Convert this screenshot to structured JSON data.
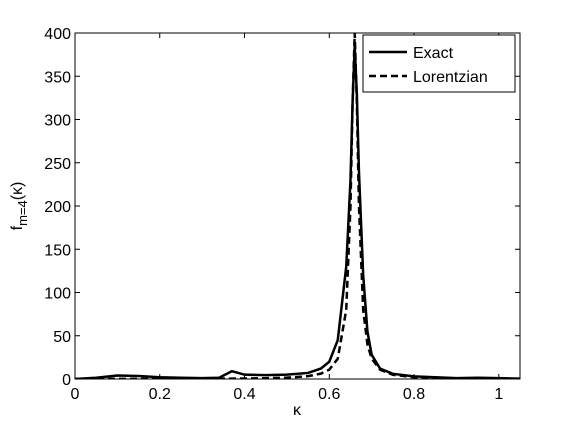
{
  "chart_data": {
    "type": "line",
    "x_label": "κ",
    "y_label": {
      "main": "f",
      "sub": "m=4",
      "tail": "(κ)"
    },
    "x": [
      0,
      0.05,
      0.1,
      0.15,
      0.2,
      0.25,
      0.3,
      0.34,
      0.37,
      0.4,
      0.45,
      0.5,
      0.55,
      0.58,
      0.6,
      0.62,
      0.64,
      0.65,
      0.655,
      0.66,
      0.665,
      0.67,
      0.68,
      0.69,
      0.7,
      0.72,
      0.75,
      0.8,
      0.85,
      0.9,
      0.95,
      1,
      1.05
    ],
    "series": [
      {
        "name": "Exact",
        "color": "#000000",
        "dash": false,
        "values": [
          0,
          1.5,
          4,
          3.5,
          2,
          1.5,
          1,
          1.5,
          9,
          5,
          4.5,
          5,
          7,
          12,
          20,
          45,
          130,
          230,
          320,
          385,
          330,
          240,
          120,
          55,
          28,
          12,
          6,
          3,
          2,
          1,
          1.5,
          1,
          0.5
        ]
      },
      {
        "name": "Lorentzian",
        "color": "#000000",
        "dash": true,
        "values": [
          0.09,
          0.11,
          0.13,
          0.16,
          0.19,
          0.24,
          0.31,
          0.4,
          0.47,
          0.59,
          0.9,
          1.55,
          3.3,
          6.2,
          10.8,
          23.5,
          80,
          200,
          320,
          400,
          320,
          200,
          80,
          40,
          23.5,
          10.8,
          4.9,
          2,
          1.1,
          0.69,
          0.47,
          0.35,
          0.26
        ]
      }
    ],
    "xlim": [
      0,
      1.05
    ],
    "xticks": [
      0,
      0.2,
      0.4,
      0.6,
      0.8,
      1
    ],
    "ylim": [
      0,
      400
    ],
    "yticks": [
      0,
      50,
      100,
      150,
      200,
      250,
      300,
      350,
      400
    ],
    "legend": "northeast",
    "grid": false
  }
}
